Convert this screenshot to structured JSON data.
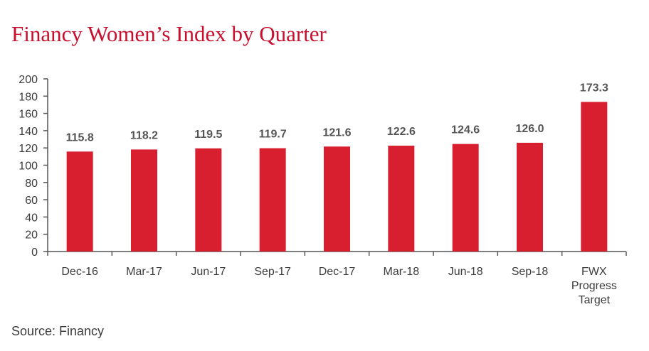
{
  "title": "Financy Women’s Index by Quarter",
  "source": "Source: Financy",
  "colors": {
    "title": "#c8102e",
    "bar": "#d71f30",
    "axis": "#555555",
    "text": "#3c3c3c"
  },
  "chart_data": {
    "type": "bar",
    "title": "Financy Women’s Index by Quarter",
    "xlabel": "",
    "ylabel": "",
    "ylim": [
      0,
      200
    ],
    "yticks": [
      0,
      20,
      40,
      60,
      80,
      100,
      120,
      140,
      160,
      180,
      200
    ],
    "grid": false,
    "categories": [
      "Dec-16",
      "Mar-17",
      "Jun-17",
      "Sep-17",
      "Dec-17",
      "Mar-18",
      "Jun-18",
      "Sep-18",
      "FWX Progress Target"
    ],
    "values": [
      115.8,
      118.2,
      119.5,
      119.7,
      121.6,
      122.6,
      124.6,
      126.0,
      173.3
    ],
    "data_labels": [
      "115.8",
      "118.2",
      "119.5",
      "119.7",
      "121.6",
      "122.6",
      "124.6",
      "126.0",
      "173.3"
    ]
  }
}
